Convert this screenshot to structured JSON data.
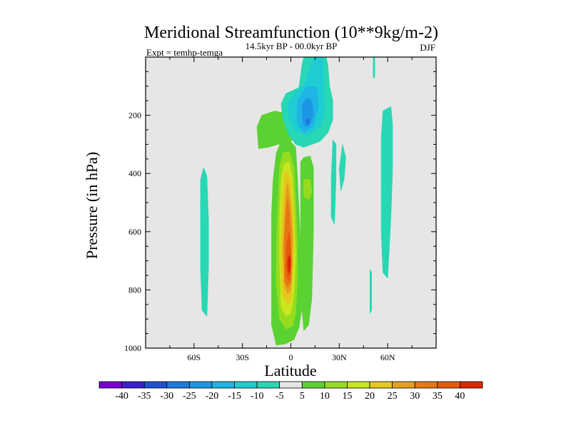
{
  "chart_data": {
    "type": "contour",
    "title": "Meridional Streamfunction (10**9kg/m-2)",
    "subtitle": "14.5kyr BP - 00.0kyr BP",
    "left_note": "Expt = temhp-temga",
    "right_note": "DJF",
    "xlabel": "Latitude",
    "ylabel": "Pressure (in hPa)",
    "x_range": [
      -90,
      90
    ],
    "y_range": [
      0,
      1000
    ],
    "y_inverted": true,
    "x_ticks": [
      {
        "value": -60,
        "label": "60S"
      },
      {
        "value": -30,
        "label": "30S"
      },
      {
        "value": 0,
        "label": "0"
      },
      {
        "value": 30,
        "label": "30N"
      },
      {
        "value": 60,
        "label": "60N"
      }
    ],
    "y_ticks": [
      {
        "value": 200,
        "label": "200"
      },
      {
        "value": 400,
        "label": "400"
      },
      {
        "value": 600,
        "label": "600"
      },
      {
        "value": 800,
        "label": "800"
      },
      {
        "value": 1000,
        "label": "1000"
      }
    ],
    "background_color": "#e6e6e6",
    "colorbar": {
      "levels": [
        "-40",
        "-35",
        "-30",
        "-25",
        "-20",
        "-15",
        "-10",
        "-5",
        "5",
        "10",
        "15",
        "20",
        "25",
        "30",
        "35",
        "40"
      ],
      "colors": [
        "#7a00d4",
        "#3c1ed2",
        "#1e50d2",
        "#1e78e0",
        "#1e96e6",
        "#1eb4e6",
        "#1ecdd2",
        "#28d7b4",
        "#e6e6e6",
        "#5ad232",
        "#96dc1e",
        "#c8e61e",
        "#e6c81e",
        "#e6a01e",
        "#e67814",
        "#e65a0a",
        "#dc2800"
      ]
    },
    "contours": [
      {
        "level": 5,
        "color": "#5ad232",
        "polygon": [
          [
            -9,
            990
          ],
          [
            -3,
            985
          ],
          [
            2,
            970
          ],
          [
            5,
            930
          ],
          [
            7,
            860
          ],
          [
            7,
            760
          ],
          [
            6,
            640
          ],
          [
            5,
            520
          ],
          [
            4,
            400
          ],
          [
            3,
            310
          ],
          [
            -1,
            285
          ],
          [
            -6,
            290
          ],
          [
            -9,
            330
          ],
          [
            -11,
            420
          ],
          [
            -12,
            540
          ],
          [
            -12,
            660
          ],
          [
            -12,
            800
          ],
          [
            -12,
            920
          ]
        ]
      },
      {
        "level": 5,
        "color": "#5ad232",
        "polygon": [
          [
            -14,
            310
          ],
          [
            -20,
            315
          ],
          [
            -21,
            240
          ],
          [
            -18,
            200
          ],
          [
            -10,
            185
          ],
          [
            -2,
            195
          ],
          [
            2,
            225
          ],
          [
            4,
            260
          ],
          [
            0,
            290
          ],
          [
            -8,
            300
          ]
        ]
      },
      {
        "level": 5,
        "color": "#5ad232",
        "polygon": [
          [
            8,
            345
          ],
          [
            12,
            340
          ],
          [
            14,
            380
          ],
          [
            14,
            600
          ],
          [
            13,
            830
          ],
          [
            11,
            920
          ],
          [
            8,
            940
          ],
          [
            7,
            870
          ],
          [
            6,
            660
          ],
          [
            6,
            460
          ],
          [
            6,
            360
          ]
        ]
      },
      {
        "level": 10,
        "color": "#96dc1e",
        "polygon": [
          [
            -7,
            900
          ],
          [
            -3,
            935
          ],
          [
            1,
            925
          ],
          [
            3,
            880
          ],
          [
            4,
            770
          ],
          [
            4,
            640
          ],
          [
            3,
            500
          ],
          [
            2,
            380
          ],
          [
            -1,
            325
          ],
          [
            -5,
            330
          ],
          [
            -7,
            380
          ],
          [
            -8,
            500
          ],
          [
            -9,
            650
          ],
          [
            -9,
            780
          ]
        ]
      },
      {
        "level": 10,
        "color": "#96dc1e",
        "polygon": [
          [
            8,
            420
          ],
          [
            12,
            420
          ],
          [
            13,
            465
          ],
          [
            11,
            490
          ],
          [
            8,
            480
          ]
        ]
      },
      {
        "level": 15,
        "color": "#c8e61e",
        "polygon": [
          [
            -6,
            860
          ],
          [
            -3,
            890
          ],
          [
            0,
            880
          ],
          [
            2,
            810
          ],
          [
            3,
            680
          ],
          [
            2,
            540
          ],
          [
            1,
            420
          ],
          [
            -1,
            360
          ],
          [
            -4,
            365
          ],
          [
            -6,
            420
          ],
          [
            -7,
            560
          ],
          [
            -7,
            700
          ]
        ]
      },
      {
        "level": 20,
        "color": "#e6c81e",
        "polygon": [
          [
            -5,
            820
          ],
          [
            -2,
            850
          ],
          [
            0,
            840
          ],
          [
            1,
            760
          ],
          [
            2,
            640
          ],
          [
            1,
            520
          ],
          [
            0,
            430
          ],
          [
            -2,
            390
          ],
          [
            -4,
            400
          ],
          [
            -5,
            480
          ],
          [
            -6,
            620
          ],
          [
            -6,
            740
          ]
        ]
      },
      {
        "level": 25,
        "color": "#e6a01e",
        "polygon": [
          [
            -4,
            790
          ],
          [
            -2,
            815
          ],
          [
            0,
            800
          ],
          [
            1,
            710
          ],
          [
            1,
            600
          ],
          [
            0,
            500
          ],
          [
            -2,
            430
          ],
          [
            -3,
            450
          ],
          [
            -4,
            540
          ],
          [
            -5,
            660
          ]
        ]
      },
      {
        "level": 30,
        "color": "#e67814",
        "polygon": [
          [
            -4,
            770
          ],
          [
            -2,
            790
          ],
          [
            0,
            775
          ],
          [
            0,
            680
          ],
          [
            0,
            600
          ],
          [
            -1,
            520
          ],
          [
            -2,
            480
          ],
          [
            -3,
            520
          ],
          [
            -4,
            620
          ]
        ]
      },
      {
        "level": 35,
        "color": "#e65a0a",
        "polygon": [
          [
            -3,
            750
          ],
          [
            -1,
            770
          ],
          [
            0,
            740
          ],
          [
            0,
            660
          ],
          [
            -1,
            600
          ],
          [
            -2,
            620
          ],
          [
            -3,
            680
          ]
        ]
      },
      {
        "level": 40,
        "color": "#dc2800",
        "polygon": [
          [
            -2,
            725
          ],
          [
            -1,
            745
          ],
          [
            0,
            720
          ],
          [
            0,
            690
          ],
          [
            -1,
            680
          ],
          [
            -2,
            695
          ]
        ]
      },
      {
        "level": -5,
        "color": "#28d7b4",
        "polygon": [
          [
            -6,
            160
          ],
          [
            -3,
            125
          ],
          [
            5,
            105
          ],
          [
            7,
            25
          ],
          [
            8,
            0
          ],
          [
            22,
            0
          ],
          [
            23,
            30
          ],
          [
            24,
            100
          ],
          [
            26,
            150
          ],
          [
            26,
            215
          ],
          [
            23,
            260
          ],
          [
            18,
            290
          ],
          [
            8,
            310
          ],
          [
            3,
            300
          ],
          [
            -1,
            270
          ],
          [
            -5,
            215
          ]
        ]
      },
      {
        "level": -5,
        "color": "#28d7b4",
        "polygon": [
          [
            -54,
            380
          ],
          [
            -52,
            410
          ],
          [
            -51,
            560
          ],
          [
            -51,
            720
          ],
          [
            -52,
            890
          ],
          [
            -55,
            870
          ],
          [
            -56,
            720
          ],
          [
            -56,
            560
          ],
          [
            -56,
            420
          ]
        ]
      },
      {
        "level": -5,
        "color": "#28d7b4",
        "polygon": [
          [
            26,
            285
          ],
          [
            28,
            300
          ],
          [
            28,
            420
          ],
          [
            27,
            575
          ],
          [
            25,
            550
          ],
          [
            25,
            420
          ]
        ]
      },
      {
        "level": -5,
        "color": "#28d7b4",
        "polygon": [
          [
            32,
            300
          ],
          [
            34,
            345
          ],
          [
            33,
            420
          ],
          [
            31,
            460
          ],
          [
            30,
            385
          ]
        ]
      },
      {
        "level": -5,
        "color": "#28d7b4",
        "polygon": [
          [
            57,
            185
          ],
          [
            62,
            170
          ],
          [
            63,
            230
          ],
          [
            63,
            390
          ],
          [
            62,
            550
          ],
          [
            60,
            760
          ],
          [
            57,
            740
          ],
          [
            56,
            600
          ],
          [
            56,
            420
          ],
          [
            56,
            280
          ]
        ]
      },
      {
        "level": -5,
        "color": "#28d7b4",
        "polygon": [
          [
            51,
            0
          ],
          [
            52,
            0
          ],
          [
            52,
            70
          ],
          [
            51,
            70
          ]
        ]
      },
      {
        "level": -5,
        "color": "#28d7b4",
        "polygon": [
          [
            49,
            730
          ],
          [
            50,
            740
          ],
          [
            50,
            870
          ],
          [
            49,
            880
          ]
        ]
      },
      {
        "level": -10,
        "color": "#1ecdd2",
        "polygon": [
          [
            -2,
            160
          ],
          [
            3,
            118
          ],
          [
            8,
            100
          ],
          [
            14,
            0
          ],
          [
            20,
            0
          ],
          [
            20,
            100
          ],
          [
            21,
            190
          ],
          [
            18,
            240
          ],
          [
            10,
            270
          ],
          [
            3,
            255
          ],
          [
            -1,
            215
          ]
        ]
      },
      {
        "level": -15,
        "color": "#1eb4e6",
        "polygon": [
          [
            4,
            150
          ],
          [
            10,
            100
          ],
          [
            16,
            105
          ],
          [
            17,
            170
          ],
          [
            14,
            240
          ],
          [
            8,
            260
          ],
          [
            4,
            230
          ]
        ]
      },
      {
        "level": -20,
        "color": "#1e96e6",
        "polygon": [
          [
            7,
            165
          ],
          [
            10,
            140
          ],
          [
            13,
            150
          ],
          [
            14,
            200
          ],
          [
            11,
            240
          ],
          [
            8,
            235
          ],
          [
            7,
            200
          ]
        ]
      },
      {
        "level": -25,
        "color": "#1e78e0",
        "polygon": [
          [
            9,
            215
          ],
          [
            11,
            212
          ],
          [
            12,
            225
          ],
          [
            10,
            232
          ]
        ]
      }
    ]
  }
}
